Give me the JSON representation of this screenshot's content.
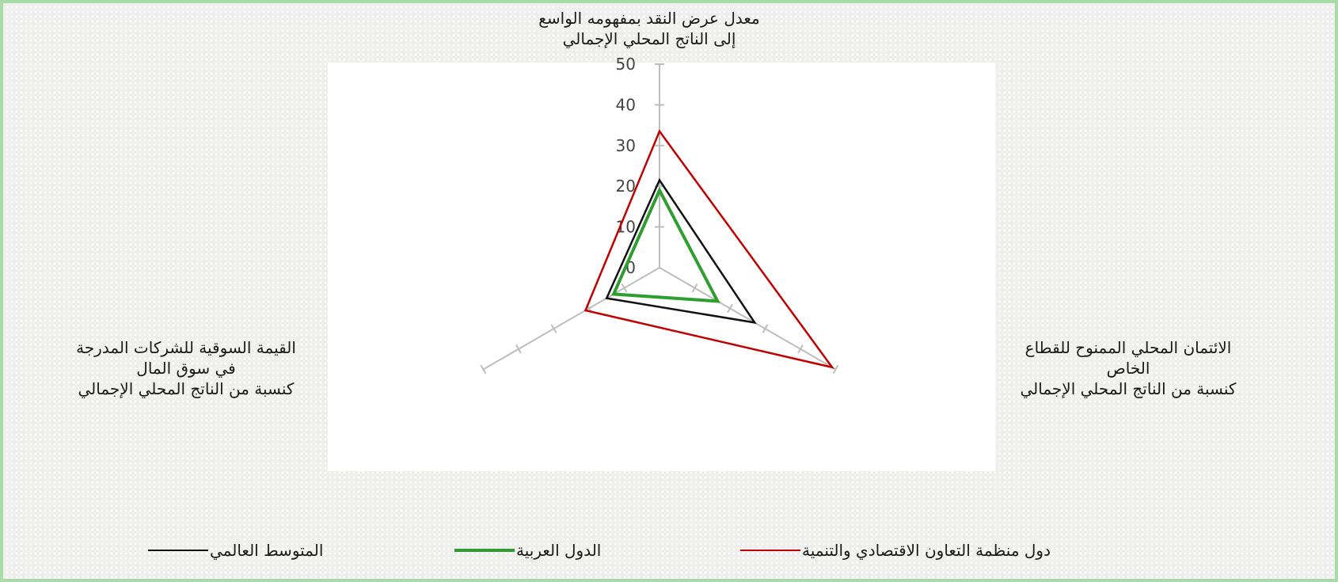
{
  "chart_data": {
    "type": "radar",
    "axes": [
      {
        "label_lines": [
          "معدل عرض النقد بمفهومه الواسع",
          "إلى الناتج المحلي الإجمالي"
        ]
      },
      {
        "label_lines": [
          "الائتمان المحلي الممنوح للقطاع",
          "الخاص",
          "كنسبة من الناتج المحلي الإجمالي"
        ]
      },
      {
        "label_lines": [
          "القيمة السوقية للشركات المدرجة",
          "في سوق المال",
          "كنسبة من الناتج المحلي الإجمالي"
        ]
      }
    ],
    "r_ticks": [
      "0",
      "10",
      "20",
      "30",
      "40",
      "50"
    ],
    "r_range": [
      0,
      50
    ],
    "series": [
      {
        "name": "دول منظمة التعاون الاقتصادي والتنمية",
        "color": "#c00000",
        "values": [
          33.5,
          49,
          21
        ]
      },
      {
        "name": "الدول العربية",
        "color": "#2e9e2e",
        "values": [
          19,
          16.5,
          13
        ]
      },
      {
        "name": "المتوسط العالمي",
        "color": "#111111",
        "values": [
          21.5,
          27,
          15
        ]
      }
    ],
    "grid": false,
    "legend_position": "bottom"
  }
}
